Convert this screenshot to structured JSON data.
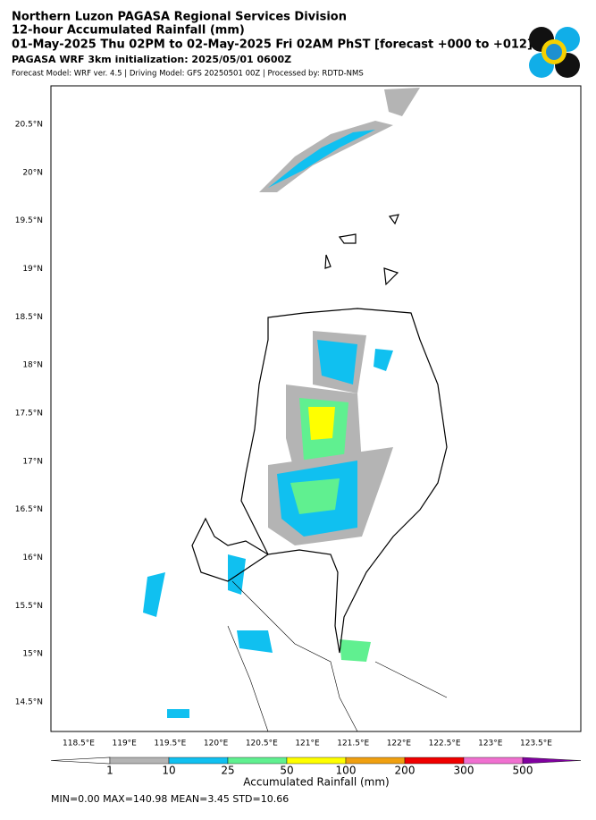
{
  "header": {
    "title_lines": [
      "Northern Luzon PAGASA Regional Services Division",
      "12-hour Accumulated Rainfall (mm)",
      "01-May-2025 Thu 02PM to 02-May-2025 Fri 02AM PhST [forecast +000 to +012]"
    ],
    "init": "PAGASA WRF 3km initialization: 2025/05/01 0600Z",
    "credits": "Forecast Model: WRF ver. 4.5 | Driving Model: GFS 20250501 00Z | Processed by: RDTD-NMS"
  },
  "map": {
    "lon_labels": [
      "118.5°E",
      "119°E",
      "119.5°E",
      "120°E",
      "120.5°E",
      "121°E",
      "121.5°E",
      "122°E",
      "122.5°E",
      "123°E",
      "123.5°E"
    ],
    "lat_labels": [
      "20.5°N",
      "20°N",
      "19.5°N",
      "19°N",
      "18.5°N",
      "18°N",
      "17.5°N",
      "17°N",
      "16.5°N",
      "16°N",
      "15.5°N",
      "15°N",
      "14.5°N"
    ]
  },
  "colorbar": {
    "label": "Accumulated Rainfall (mm)",
    "ticks": [
      1,
      10,
      25,
      50,
      100,
      200,
      300,
      500
    ],
    "under_color": "#ffffff",
    "colors": [
      "#b4b4b4",
      "#10c0f0",
      "#60f090",
      "#ffff00",
      "#f0a010",
      "#f00000",
      "#f070d0",
      "#8000a0"
    ]
  },
  "stats": "MIN=0.00   MAX=140.98   MEAN=3.45   STD=10.66"
}
